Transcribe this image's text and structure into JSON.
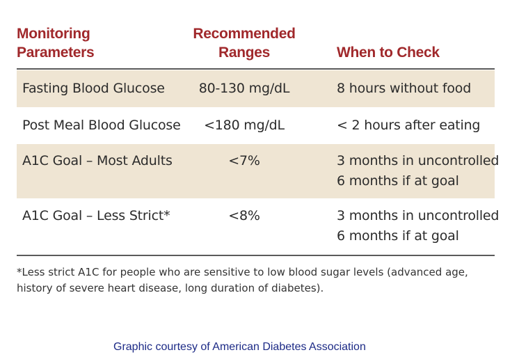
{
  "table": {
    "headers": {
      "parameters_line1": "Monitoring",
      "parameters_line2": "Parameters",
      "ranges_line1": "Recommended",
      "ranges_line2": "Ranges",
      "when": "When to Check"
    },
    "rows": [
      {
        "parameter": "Fasting Blood Glucose",
        "range": "80-130 mg/dL",
        "when_line1": "8 hours without food",
        "when_line2": ""
      },
      {
        "parameter": "Post Meal Blood Glucose",
        "range": "<180 mg/dL",
        "when_line1": "< 2 hours after eating",
        "when_line2": ""
      },
      {
        "parameter": "A1C Goal – Most Adults",
        "range": "<7%",
        "when_line1": "3 months in uncontrolled",
        "when_line2": "6 months if at goal"
      },
      {
        "parameter": "A1C Goal – Less Strict*",
        "range": "<8%",
        "when_line1": "3 months in uncontrolled",
        "when_line2": "6 months if at goal"
      }
    ]
  },
  "footnote": {
    "line1": "*Less strict A1C for people who are sensitive to low blood sugar levels (advanced age,",
    "line2": "history of severe heart disease, long duration of diabetes)."
  },
  "credit": "Graphic courtesy of American Diabetes Association",
  "colors": {
    "header_text": "#a0282b",
    "shaded_row": "#efe5d3",
    "credit_text": "#1c2a86"
  }
}
